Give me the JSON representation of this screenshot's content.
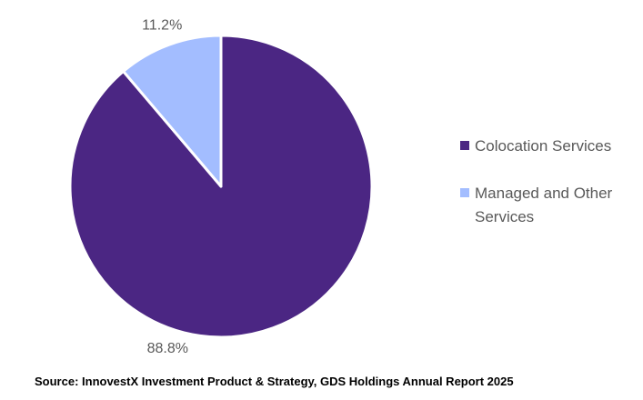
{
  "chart_data": {
    "type": "pie",
    "title": "",
    "slices": [
      {
        "label": "Colocation Services",
        "value": 88.8,
        "display": "88.8%",
        "color": "#4B2683"
      },
      {
        "label": "Managed and Other Services",
        "value": 11.2,
        "display": "11.2%",
        "color": "#A3BDFF"
      }
    ],
    "start": "12 o'clock",
    "direction": "clockwise",
    "legend_position": "right"
  },
  "source": "Source: InnovestX Investment Product & Strategy, GDS Holdings Annual Report 2025"
}
